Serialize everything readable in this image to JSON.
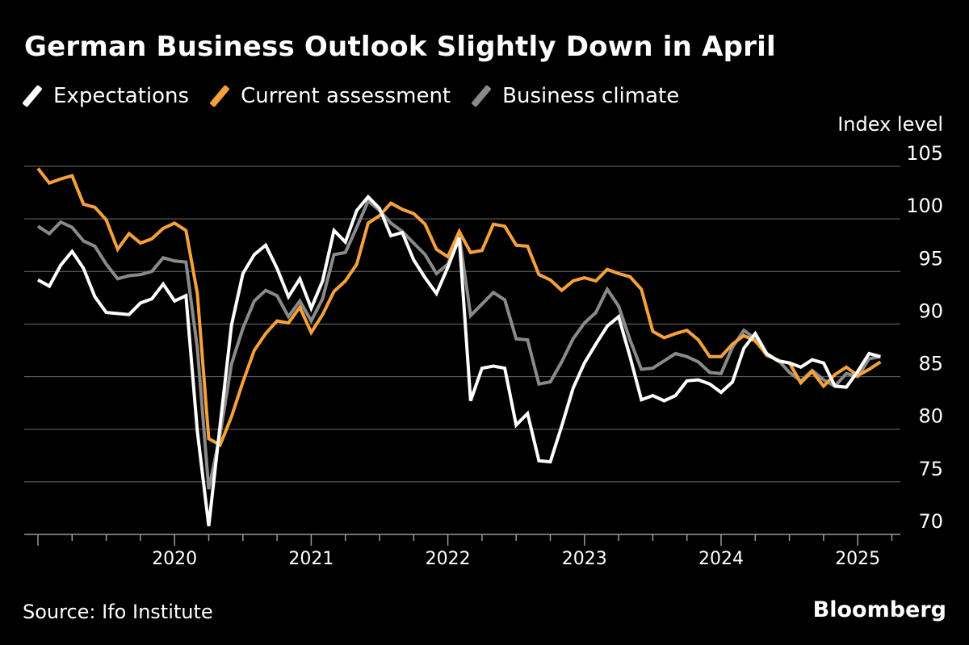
{
  "title": "German Business Outlook Slightly Down in April",
  "source": "Source: Ifo Institute",
  "brand": "Bloomberg",
  "colors": {
    "background": "#000000",
    "grid": "#6e6e6e",
    "text": "#ffffff",
    "expectations": "#ffffff",
    "current": "#f6a13b",
    "climate": "#8a8a8a"
  },
  "chart_data": {
    "type": "line",
    "title": "German Business Outlook Slightly Down in April",
    "ylabel": "Index level",
    "ylim": [
      70,
      105
    ],
    "yticks": [
      70,
      75,
      80,
      85,
      90,
      95,
      100,
      105
    ],
    "xlabels": [
      "2020",
      "2021",
      "2022",
      "2023",
      "2024",
      "2025"
    ],
    "x_start": "2019-01",
    "grid": true,
    "legend_position": "top-left",
    "series": [
      {
        "name": "Expectations",
        "color": "#ffffff",
        "values": [
          94.2,
          93.6,
          95.6,
          96.9,
          95.3,
          92.6,
          91.1,
          91.0,
          90.9,
          92.0,
          92.4,
          93.8,
          92.2,
          92.7,
          79.8,
          70.8,
          80.4,
          89.9,
          94.8,
          96.6,
          97.5,
          95.3,
          92.6,
          94.3,
          91.5,
          94.1,
          98.9,
          97.8,
          100.8,
          102.1,
          101.0,
          98.4,
          98.7,
          96.1,
          94.4,
          92.9,
          95.4,
          98.2,
          82.7,
          85.8,
          86.0,
          85.8,
          80.4,
          81.5,
          77.0,
          76.9,
          80.3,
          83.9,
          86.3,
          88.1,
          89.8,
          90.7,
          86.9,
          82.8,
          83.2,
          82.7,
          83.2,
          84.6,
          84.7,
          84.3,
          83.5,
          84.5,
          87.7,
          89.1,
          87.2,
          86.5,
          86.3,
          85.9,
          86.6,
          86.3,
          84.1,
          84.0,
          85.5,
          87.2,
          86.9
        ]
      },
      {
        "name": "Current assessment",
        "color": "#f6a13b",
        "values": [
          104.8,
          103.4,
          103.8,
          104.1,
          101.4,
          101.1,
          99.9,
          97.1,
          98.6,
          97.7,
          98.1,
          99.1,
          99.6,
          98.9,
          92.9,
          79.1,
          78.5,
          81.2,
          84.5,
          87.5,
          89.1,
          90.3,
          90.1,
          91.6,
          89.2,
          90.9,
          93.1,
          94.1,
          95.7,
          99.6,
          100.3,
          101.5,
          100.9,
          100.5,
          99.5,
          97.1,
          96.4,
          98.8,
          96.8,
          97.0,
          99.5,
          99.3,
          97.5,
          97.4,
          94.7,
          94.2,
          93.2,
          94.1,
          94.4,
          94.1,
          95.2,
          94.8,
          94.5,
          93.3,
          89.3,
          88.7,
          89.1,
          89.4,
          88.5,
          86.9,
          86.9,
          88.1,
          88.9,
          88.4,
          87.1,
          86.5,
          86.3,
          84.4,
          85.5,
          84.1,
          85.2,
          85.9,
          85.1,
          85.7,
          86.4
        ]
      },
      {
        "name": "Business climate",
        "color": "#8a8a8a",
        "values": [
          99.3,
          98.6,
          99.7,
          99.2,
          97.9,
          97.4,
          95.7,
          94.3,
          94.6,
          94.7,
          95.0,
          96.3,
          96.0,
          95.9,
          87.7,
          74.3,
          79.5,
          86.2,
          89.6,
          92.2,
          93.2,
          92.7,
          90.7,
          92.2,
          90.3,
          92.4,
          96.6,
          96.8,
          99.2,
          101.7,
          100.8,
          99.6,
          98.8,
          97.7,
          96.6,
          94.8,
          95.7,
          98.5,
          90.8,
          91.9,
          93.0,
          92.3,
          88.6,
          88.5,
          84.3,
          84.5,
          86.4,
          88.6,
          90.1,
          91.1,
          93.3,
          91.7,
          88.5,
          85.7,
          85.8,
          86.5,
          87.2,
          86.9,
          86.4,
          85.4,
          85.3,
          87.8,
          89.4,
          88.6,
          87.0,
          86.6,
          85.4,
          84.6,
          85.6,
          84.7,
          84.1,
          85.3,
          85.0,
          86.7,
          86.9
        ]
      }
    ]
  }
}
